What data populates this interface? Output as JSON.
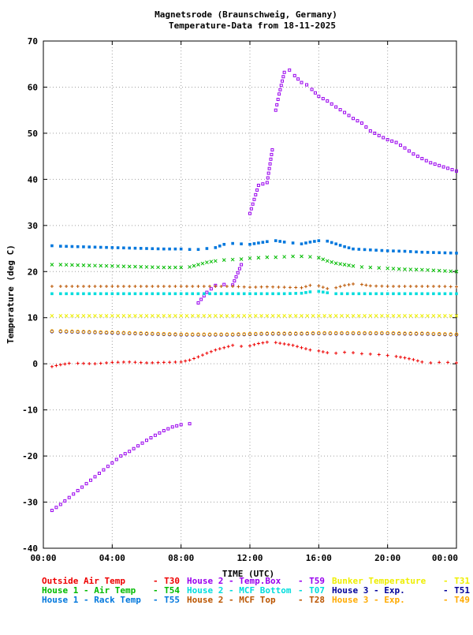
{
  "chart_data": {
    "type": "scatter",
    "title": "Magnetsrode (Braunschweig, Germany)",
    "subtitle": "Temperature-Data from 18-11-2025",
    "xlabel": "TIME (UTC)",
    "ylabel": "Temperature (deg C)",
    "xlim": [
      0,
      24
    ],
    "ylim": [
      -40,
      70
    ],
    "xticks": [
      0,
      4,
      8,
      12,
      16,
      20,
      24
    ],
    "xtick_labels": [
      "00:00",
      "04:00",
      "08:00",
      "12:00",
      "16:00",
      "20:00",
      "00:00"
    ],
    "yticks": [
      -40,
      -30,
      -20,
      -10,
      0,
      10,
      20,
      30,
      40,
      50,
      60,
      70
    ],
    "ytick_labels": [
      "-40",
      "-30",
      "-20",
      "-10",
      "0",
      "10",
      "20",
      "30",
      "40",
      "50",
      "60",
      "70"
    ],
    "grid": true,
    "legend_position": "bottom",
    "series": [
      {
        "name": "Outside Air Temp",
        "code": "T30",
        "color": "#ee0000",
        "marker": "plus",
        "x": [
          0.5,
          1,
          1.5,
          2,
          3,
          4,
          5,
          6,
          7,
          8,
          8.5,
          9,
          9.5,
          10,
          10.5,
          11,
          11.5,
          12,
          12.5,
          13,
          13.5,
          14,
          14.5,
          15,
          15.5,
          16,
          16.5,
          17,
          17.5,
          18,
          18.5,
          19,
          19.5,
          20,
          20.5,
          21,
          21.5,
          22,
          22.5,
          23,
          23.5,
          24
        ],
        "y": [
          -0.6,
          -0.2,
          0.1,
          0.1,
          0.0,
          0.3,
          0.4,
          0.2,
          0.3,
          0.4,
          0.8,
          1.5,
          2.3,
          3.0,
          3.5,
          4.0,
          3.8,
          3.9,
          4.4,
          4.7,
          4.6,
          4.3,
          4.0,
          3.5,
          3.0,
          2.8,
          2.4,
          2.3,
          2.5,
          2.4,
          2.2,
          2.1,
          2.0,
          1.8,
          1.6,
          1.3,
          0.9,
          0.4,
          0.2,
          0.3,
          0.3,
          0.2
        ]
      },
      {
        "name": "House 1 - Air  Temp",
        "code": "T54",
        "color": "#00bb00",
        "marker": "cross",
        "x": [
          0.5,
          1,
          2,
          3,
          4,
          5,
          6,
          7,
          8,
          8.5,
          9,
          9.5,
          10,
          10.5,
          11,
          11.5,
          12,
          12.5,
          13,
          13.5,
          14,
          14.5,
          15,
          15.5,
          16,
          16.5,
          17,
          17.5,
          18,
          18.5,
          19,
          19.5,
          20,
          21,
          22,
          23,
          24
        ],
        "y": [
          21.5,
          21.5,
          21.4,
          21.3,
          21.2,
          21.1,
          21.0,
          20.9,
          20.9,
          21.0,
          21.5,
          22.0,
          22.3,
          22.5,
          22.6,
          22.7,
          22.9,
          23.0,
          23.1,
          23.1,
          23.2,
          23.3,
          23.3,
          23.2,
          23.0,
          22.3,
          21.8,
          21.5,
          21.2,
          21.0,
          20.9,
          20.8,
          20.7,
          20.5,
          20.4,
          20.2,
          20.0
        ]
      },
      {
        "name": "House 1 - Rack Temp",
        "code": "T55",
        "color": "#0077dd",
        "marker": "square",
        "x": [
          0.5,
          1,
          2,
          3,
          4,
          5,
          6,
          7,
          8,
          8.5,
          9,
          9.5,
          10,
          10.5,
          11,
          11.5,
          12,
          12.5,
          13,
          13.5,
          14,
          14.5,
          15,
          15.5,
          16,
          16.5,
          17,
          17.5,
          18,
          19,
          20,
          21,
          22,
          23,
          24
        ],
        "y": [
          25.6,
          25.5,
          25.4,
          25.3,
          25.2,
          25.1,
          25.0,
          24.9,
          24.9,
          24.8,
          24.8,
          25.0,
          25.2,
          25.9,
          26.1,
          26.0,
          25.9,
          26.2,
          26.5,
          26.7,
          26.4,
          26.2,
          26.0,
          26.4,
          26.7,
          26.6,
          26.0,
          25.4,
          24.9,
          24.7,
          24.5,
          24.4,
          24.2,
          24.1,
          24.0
        ]
      },
      {
        "name": "House 2 - Temp.Box",
        "code": "T59",
        "color": "#9900ee",
        "marker": "square-open",
        "x": [
          0.5,
          1,
          1.5,
          2,
          2.5,
          3,
          3.5,
          4,
          4.5,
          5,
          5.5,
          6,
          6.5,
          7,
          7.5,
          8,
          8.5,
          9,
          9.5,
          10,
          10.5,
          11,
          11.5,
          12,
          12.5,
          13,
          13.3,
          13.5,
          13.7,
          14,
          14.3,
          14.6,
          15,
          15.3,
          15.6,
          16,
          16.5,
          17,
          17.5,
          18,
          18.5,
          19,
          19.5,
          20,
          20.5,
          21,
          21.5,
          22,
          22.5,
          23,
          23.5,
          24
        ],
        "y": [
          -31.8,
          -30.5,
          -29.0,
          -27.5,
          -26.0,
          -24.5,
          -23.0,
          -21.5,
          -20.0,
          -19.0,
          -17.8,
          -16.6,
          -15.5,
          -14.5,
          -13.7,
          -13.2,
          -13.0,
          13.2,
          15.5,
          17.0,
          17.2,
          17.1,
          21.5,
          32.6,
          38.7,
          39.3,
          46.4,
          55.0,
          58.5,
          63.2,
          63.7,
          62.5,
          61.0,
          60.5,
          59.5,
          58.0,
          57.0,
          55.7,
          54.5,
          53.2,
          52.2,
          50.5,
          49.5,
          48.6,
          48.0,
          46.8,
          45.5,
          44.5,
          43.6,
          43.0,
          42.4,
          41.8
        ]
      },
      {
        "name": "House 2 - MCF Bottom",
        "code": "T07",
        "color": "#00dddd",
        "marker": "square",
        "x": [
          0.5,
          1,
          2,
          3,
          4,
          5,
          6,
          7,
          8,
          9,
          10,
          11,
          12,
          13,
          14,
          15,
          15.5,
          16,
          16.5,
          17,
          18,
          19,
          20,
          21,
          22,
          23,
          24
        ],
        "y": [
          15.2,
          15.2,
          15.2,
          15.2,
          15.2,
          15.2,
          15.2,
          15.2,
          15.2,
          15.2,
          15.2,
          15.2,
          15.2,
          15.2,
          15.2,
          15.3,
          15.6,
          15.7,
          15.4,
          15.2,
          15.2,
          15.2,
          15.2,
          15.2,
          15.2,
          15.2,
          15.2
        ]
      },
      {
        "name": "House 2 - MCF Top",
        "code": "T28",
        "color": "#bb5500",
        "marker": "plus",
        "x": [
          0.5,
          1,
          2,
          3,
          4,
          5,
          6,
          7,
          8,
          9,
          10,
          11,
          12,
          13,
          14,
          15,
          15.5,
          16,
          16.5,
          17,
          17.5,
          18,
          18.5,
          19,
          20,
          21,
          22,
          23,
          24
        ],
        "y": [
          16.8,
          16.8,
          16.8,
          16.8,
          16.8,
          16.8,
          16.8,
          16.8,
          16.8,
          16.8,
          16.8,
          16.8,
          16.6,
          16.7,
          16.6,
          16.5,
          17.0,
          16.9,
          16.3,
          16.5,
          17.0,
          17.3,
          17.2,
          16.9,
          16.8,
          16.8,
          16.8,
          16.8,
          16.7
        ]
      },
      {
        "name": "Bunker Temperature",
        "code": "T31",
        "color": "#eeee00",
        "marker": "cross",
        "x": [
          0.5,
          1,
          2,
          3,
          4,
          5,
          6,
          7,
          8,
          9,
          10,
          11,
          12,
          13,
          14,
          15,
          16,
          17,
          18,
          19,
          20,
          21,
          22,
          23,
          24
        ],
        "y": [
          10.4,
          10.4,
          10.4,
          10.4,
          10.4,
          10.4,
          10.4,
          10.4,
          10.4,
          10.4,
          10.4,
          10.4,
          10.4,
          10.4,
          10.4,
          10.4,
          10.4,
          10.4,
          10.4,
          10.4,
          10.4,
          10.4,
          10.4,
          10.4,
          10.4
        ]
      },
      {
        "name": "House 3 - Exp.",
        "code": "T51",
        "color": "#000099",
        "marker": "circle",
        "x": [
          0.5,
          1,
          2,
          3,
          4,
          5,
          6,
          7,
          8,
          9,
          10,
          11,
          12,
          13,
          14,
          15,
          16,
          17,
          18,
          19,
          20,
          21,
          22,
          23,
          24
        ],
        "y": [
          7.0,
          7.0,
          6.9,
          6.8,
          6.7,
          6.6,
          6.5,
          6.4,
          6.3,
          6.3,
          6.3,
          6.3,
          6.4,
          6.5,
          6.5,
          6.5,
          6.6,
          6.6,
          6.6,
          6.6,
          6.6,
          6.5,
          6.5,
          6.4,
          6.3
        ]
      },
      {
        "name": "House 3 - Exp.",
        "code": "T49",
        "color": "#ffaa00",
        "marker": "circle",
        "x": [
          0.5,
          1,
          2,
          3,
          4,
          5,
          6,
          7,
          8,
          9,
          10,
          11,
          12,
          13,
          14,
          15,
          16,
          17,
          18,
          19,
          20,
          21,
          22,
          23,
          24
        ],
        "y": [
          7.1,
          7.1,
          7.0,
          6.9,
          6.8,
          6.7,
          6.6,
          6.5,
          6.4,
          6.4,
          6.4,
          6.4,
          6.5,
          6.6,
          6.6,
          6.6,
          6.7,
          6.7,
          6.7,
          6.7,
          6.7,
          6.6,
          6.6,
          6.5,
          6.4
        ]
      }
    ]
  },
  "legend_items": [
    {
      "label": "Outside Air Temp",
      "code": "T30",
      "color": "#ee0000"
    },
    {
      "label": "House 2 - Temp.Box",
      "code": "T59",
      "color": "#9900ee"
    },
    {
      "label": "Bunker Temperature",
      "code": "T31",
      "color": "#eeee00"
    },
    {
      "label": "House 1 - Air  Temp",
      "code": "T54",
      "color": "#00bb00"
    },
    {
      "label": "House 2 - MCF Bottom",
      "code": "T07",
      "color": "#00dddd"
    },
    {
      "label": "House 3 - Exp.",
      "code": "T51",
      "color": "#000099"
    },
    {
      "label": "House 1 - Rack Temp",
      "code": "T55",
      "color": "#0077dd"
    },
    {
      "label": "House 2 - MCF Top",
      "code": "T28",
      "color": "#bb5500"
    },
    {
      "label": "House 3 - Exp.",
      "code": "T49",
      "color": "#ffaa00"
    }
  ]
}
